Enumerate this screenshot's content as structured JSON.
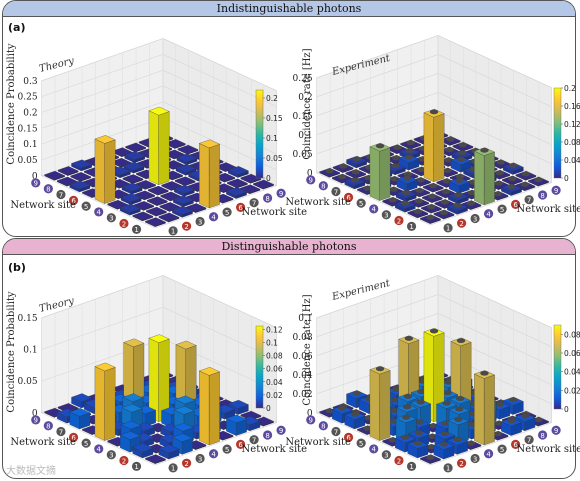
{
  "panels": [
    {
      "banner": "Indistinguishable photons",
      "label": "(a)",
      "banner_color": "#b4c7e7"
    },
    {
      "banner": "Distinguishable photons",
      "label": "(b)",
      "banner_color": "#e8b3d0"
    }
  ],
  "watermark": "大数据文摘",
  "site_numbers": [
    "1",
    "2",
    "3",
    "4",
    "5",
    "6",
    "7",
    "8",
    "9"
  ],
  "site_colors": [
    "#555555",
    "#b5372b",
    "#555555",
    "#5b4a9e",
    "#555555",
    "#b5372b",
    "#555555",
    "#5b4a9e",
    "#5b4a9e"
  ],
  "colormap": [
    "#352a87",
    "#0f5cdd",
    "#1481d6",
    "#06a4ca",
    "#2eb7a4",
    "#87bf77",
    "#d1bb59",
    "#fec832",
    "#f9fb0e"
  ],
  "chart_data": [
    {
      "type": "bar3d",
      "annotation": "Theory",
      "zlabel": "Coincidence Probability",
      "xlabel": "Network site",
      "ylabel": "Network site",
      "zlim": [
        0,
        0.3
      ],
      "zticks": [
        "0",
        "0.05",
        "0.1",
        "0.15",
        "0.2",
        "0.25",
        "0.3"
      ],
      "colorbar_ticks": [
        "0",
        "0.05",
        "0.1",
        "0.15",
        "0.2"
      ],
      "colorbar_max": 0.22,
      "values": [
        [
          0.0,
          0.0,
          0.01,
          0.0,
          0.19,
          0.0,
          0.01,
          0.0,
          0.0
        ],
        [
          0.0,
          0.0,
          0.0,
          0.01,
          0.0,
          0.01,
          0.0,
          0.0,
          0.0
        ],
        [
          0.01,
          0.0,
          0.0,
          0.0,
          0.01,
          0.0,
          0.0,
          0.0,
          0.01
        ],
        [
          0.0,
          0.01,
          0.0,
          0.0,
          0.0,
          0.0,
          0.01,
          0.0,
          0.0
        ],
        [
          0.19,
          0.0,
          0.01,
          0.0,
          0.22,
          0.0,
          0.01,
          0.0,
          0.0
        ],
        [
          0.0,
          0.01,
          0.0,
          0.0,
          0.0,
          0.0,
          0.0,
          0.01,
          0.0
        ],
        [
          0.01,
          0.0,
          0.0,
          0.01,
          0.01,
          0.0,
          0.0,
          0.0,
          0.0
        ],
        [
          0.0,
          0.0,
          0.0,
          0.0,
          0.0,
          0.01,
          0.0,
          0.0,
          0.0
        ],
        [
          0.0,
          0.0,
          0.01,
          0.0,
          0.0,
          0.0,
          0.0,
          0.0,
          0.0
        ]
      ]
    },
    {
      "type": "bar3d",
      "annotation": "Experiment",
      "zlabel": "Coincidence rate [Hz]",
      "xlabel": "Network site",
      "ylabel": "Network site",
      "zlim": [
        0,
        0.25
      ],
      "zticks": [
        "0",
        "0.05",
        "0.1",
        "0.15",
        "0.2",
        "0.25"
      ],
      "colorbar_ticks": [
        "0",
        "0.04",
        "0.08",
        "0.12",
        "0.16",
        "0.2"
      ],
      "colorbar_max": 0.2,
      "values": [
        [
          0.0,
          0.0,
          0.01,
          0.0,
          0.13,
          0.0,
          0.01,
          0.0,
          0.0
        ],
        [
          0.0,
          0.0,
          0.0,
          0.01,
          0.0,
          0.01,
          0.0,
          0.0,
          0.0
        ],
        [
          0.01,
          0.0,
          0.0,
          0.0,
          0.02,
          0.0,
          0.01,
          0.0,
          0.01
        ],
        [
          0.0,
          0.01,
          0.0,
          0.0,
          0.0,
          0.0,
          0.01,
          0.0,
          0.0
        ],
        [
          0.13,
          0.0,
          0.02,
          0.0,
          0.17,
          0.0,
          0.02,
          0.0,
          0.0
        ],
        [
          0.0,
          0.01,
          0.0,
          0.0,
          0.0,
          0.0,
          0.0,
          0.01,
          0.0
        ],
        [
          0.01,
          0.0,
          0.01,
          0.01,
          0.02,
          0.0,
          0.0,
          0.0,
          0.0
        ],
        [
          0.0,
          0.0,
          0.0,
          0.0,
          0.0,
          0.01,
          0.0,
          0.0,
          0.0
        ],
        [
          0.0,
          0.0,
          0.01,
          0.0,
          0.0,
          0.0,
          0.0,
          0.0,
          0.0
        ]
      ]
    },
    {
      "type": "bar3d",
      "annotation": "Theory",
      "zlabel": "Coincidence Probability",
      "xlabel": "Network site",
      "ylabel": "Network site",
      "zlim": [
        0,
        0.15
      ],
      "zticks": [
        "0",
        "0.05",
        "0.1",
        "0.15"
      ],
      "colorbar_ticks": [
        "0",
        "0.02",
        "0.04",
        "0.06",
        "0.08",
        "0.1",
        "0.12"
      ],
      "colorbar_max": 0.125,
      "values": [
        [
          0.0,
          0.01,
          0.02,
          0.0,
          0.11,
          0.0,
          0.02,
          0.01,
          0.0
        ],
        [
          0.01,
          0.0,
          0.01,
          0.02,
          0.01,
          0.02,
          0.0,
          0.0,
          0.0
        ],
        [
          0.02,
          0.01,
          0.0,
          0.01,
          0.03,
          0.02,
          0.02,
          0.01,
          0.01
        ],
        [
          0.0,
          0.02,
          0.01,
          0.0,
          0.02,
          0.03,
          0.02,
          0.0,
          0.0
        ],
        [
          0.11,
          0.01,
          0.03,
          0.02,
          0.125,
          0.02,
          0.1,
          0.01,
          0.0
        ],
        [
          0.0,
          0.02,
          0.02,
          0.03,
          0.02,
          0.0,
          0.02,
          0.02,
          0.0
        ],
        [
          0.02,
          0.0,
          0.02,
          0.02,
          0.1,
          0.02,
          0.0,
          0.01,
          0.0
        ],
        [
          0.01,
          0.0,
          0.01,
          0.0,
          0.01,
          0.02,
          0.01,
          0.0,
          0.0
        ],
        [
          0.0,
          0.0,
          0.01,
          0.0,
          0.0,
          0.0,
          0.0,
          0.0,
          0.0
        ]
      ]
    },
    {
      "type": "bar3d",
      "annotation": "Experiment",
      "zlabel": "Coincidence rate [Hz]",
      "xlabel": "Network site",
      "ylabel": "Network site",
      "zlim": [
        0,
        0.1
      ],
      "zticks": [
        "0",
        "0.02",
        "0.04",
        "0.06",
        "0.08",
        "0.1"
      ],
      "colorbar_ticks": [
        "0",
        "0.02",
        "0.04",
        "0.06",
        "0.08"
      ],
      "colorbar_max": 0.09,
      "values": [
        [
          0.0,
          0.01,
          0.01,
          0.0,
          0.07,
          0.0,
          0.01,
          0.01,
          0.0
        ],
        [
          0.01,
          0.0,
          0.01,
          0.02,
          0.01,
          0.02,
          0.0,
          0.0,
          0.0
        ],
        [
          0.01,
          0.01,
          0.0,
          0.01,
          0.02,
          0.01,
          0.02,
          0.01,
          0.01
        ],
        [
          0.0,
          0.02,
          0.01,
          0.0,
          0.02,
          0.02,
          0.01,
          0.0,
          0.0
        ],
        [
          0.07,
          0.01,
          0.02,
          0.02,
          0.09,
          0.02,
          0.07,
          0.01,
          0.0
        ],
        [
          0.0,
          0.02,
          0.01,
          0.02,
          0.02,
          0.0,
          0.02,
          0.02,
          0.0
        ],
        [
          0.01,
          0.0,
          0.02,
          0.01,
          0.07,
          0.02,
          0.0,
          0.01,
          0.0
        ],
        [
          0.01,
          0.0,
          0.01,
          0.0,
          0.01,
          0.02,
          0.01,
          0.0,
          0.0
        ],
        [
          0.0,
          0.0,
          0.01,
          0.0,
          0.0,
          0.0,
          0.0,
          0.0,
          0.0
        ]
      ]
    }
  ]
}
